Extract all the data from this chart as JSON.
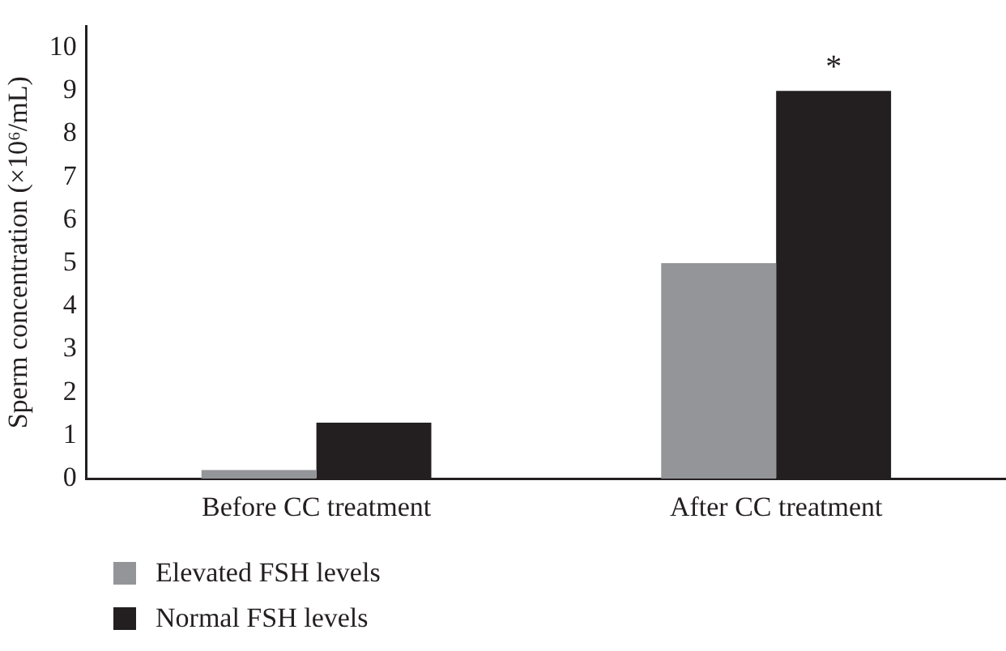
{
  "chart_data": {
    "type": "bar",
    "ylabel": "Sperm concentration (×10⁶/mL)",
    "categories": [
      "Before CC treatment",
      "After CC treatment"
    ],
    "series": [
      {
        "name": "Elevated FSH levels",
        "color": "#939598",
        "values": [
          0.2,
          5.0
        ]
      },
      {
        "name": "Normal FSH levels",
        "color": "#231f20",
        "values": [
          1.3,
          9.0
        ]
      }
    ],
    "ylim": [
      0,
      10.5
    ],
    "yticks": [
      0,
      1,
      2,
      3,
      4,
      5,
      6,
      7,
      8,
      9,
      10
    ],
    "grid": false,
    "legend": "bottom left",
    "annotations": [
      "*"
    ]
  }
}
